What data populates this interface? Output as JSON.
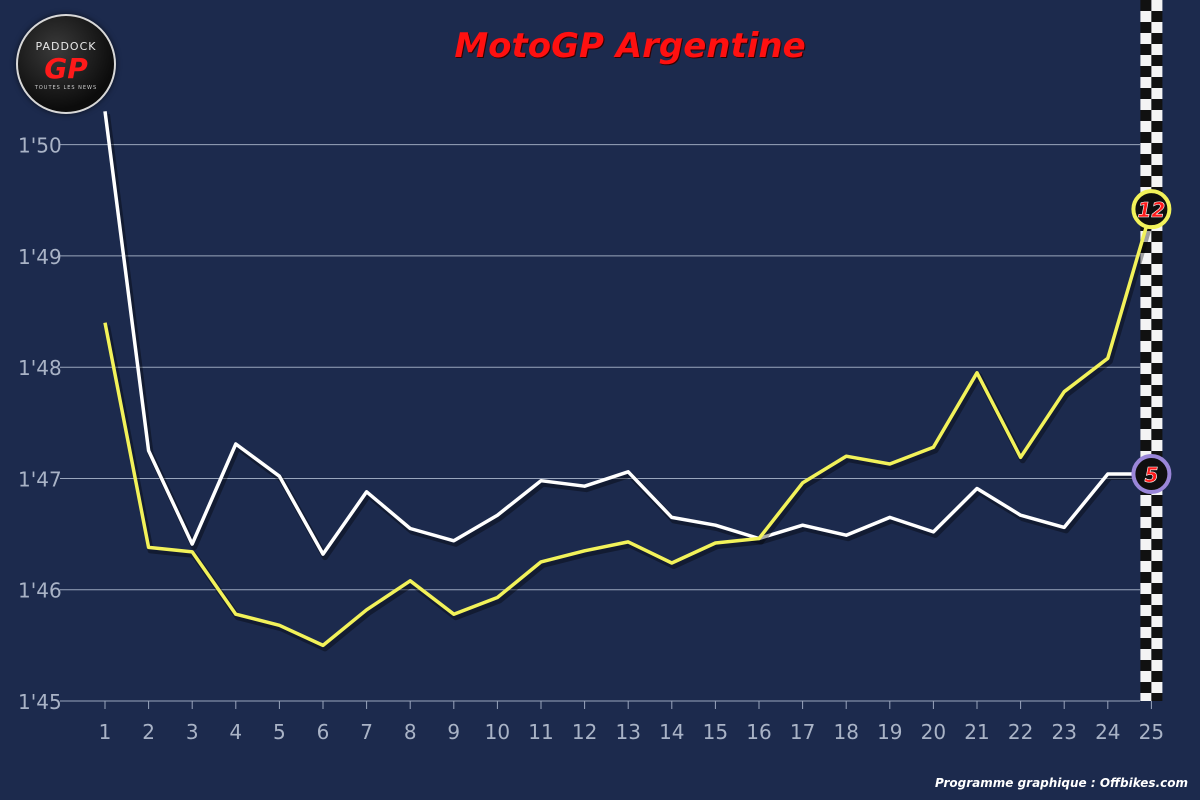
{
  "branding": {
    "logo_top": "PADDOCK",
    "logo_main": "GP",
    "logo_sub": "TOUTES LES NEWS",
    "credit": "Programme graphique : Offbikes.com"
  },
  "chart_data": {
    "type": "line",
    "title": "MotoGP Argentine",
    "xlabel": "",
    "ylabel": "",
    "x": [
      1,
      2,
      3,
      4,
      5,
      6,
      7,
      8,
      9,
      10,
      11,
      12,
      13,
      14,
      15,
      16,
      17,
      18,
      19,
      20,
      21,
      22,
      23,
      24,
      25
    ],
    "y_ticks": [
      45,
      46,
      47,
      48,
      49,
      50
    ],
    "y_tick_labels": [
      "1'45",
      "1'46",
      "1'47",
      "1'48",
      "1'49",
      "1'50"
    ],
    "ylim": [
      45,
      51.3
    ],
    "grid": true,
    "series": [
      {
        "name": "12",
        "color": "#f2f25a",
        "badge_text": "12",
        "badge_color": "#ff1a1a",
        "values": [
          48.4,
          46.38,
          46.34,
          45.78,
          45.68,
          45.5,
          45.82,
          46.08,
          45.78,
          45.93,
          46.25,
          46.35,
          46.43,
          46.24,
          46.42,
          46.46,
          46.96,
          47.2,
          47.13,
          47.28,
          47.95,
          47.19,
          47.78,
          48.08,
          49.42
        ]
      },
      {
        "name": "5",
        "color": "#ffffff",
        "badge_text": "5",
        "badge_color": "#ff1a1a",
        "values": [
          50.3,
          47.25,
          46.41,
          47.31,
          47.02,
          46.32,
          46.88,
          46.55,
          46.44,
          46.67,
          46.98,
          46.93,
          47.06,
          46.65,
          46.58,
          46.46,
          46.58,
          46.49,
          46.65,
          46.52,
          46.91,
          46.67,
          46.56,
          47.04,
          47.04
        ]
      }
    ],
    "finish_flag_at_x": 25
  }
}
